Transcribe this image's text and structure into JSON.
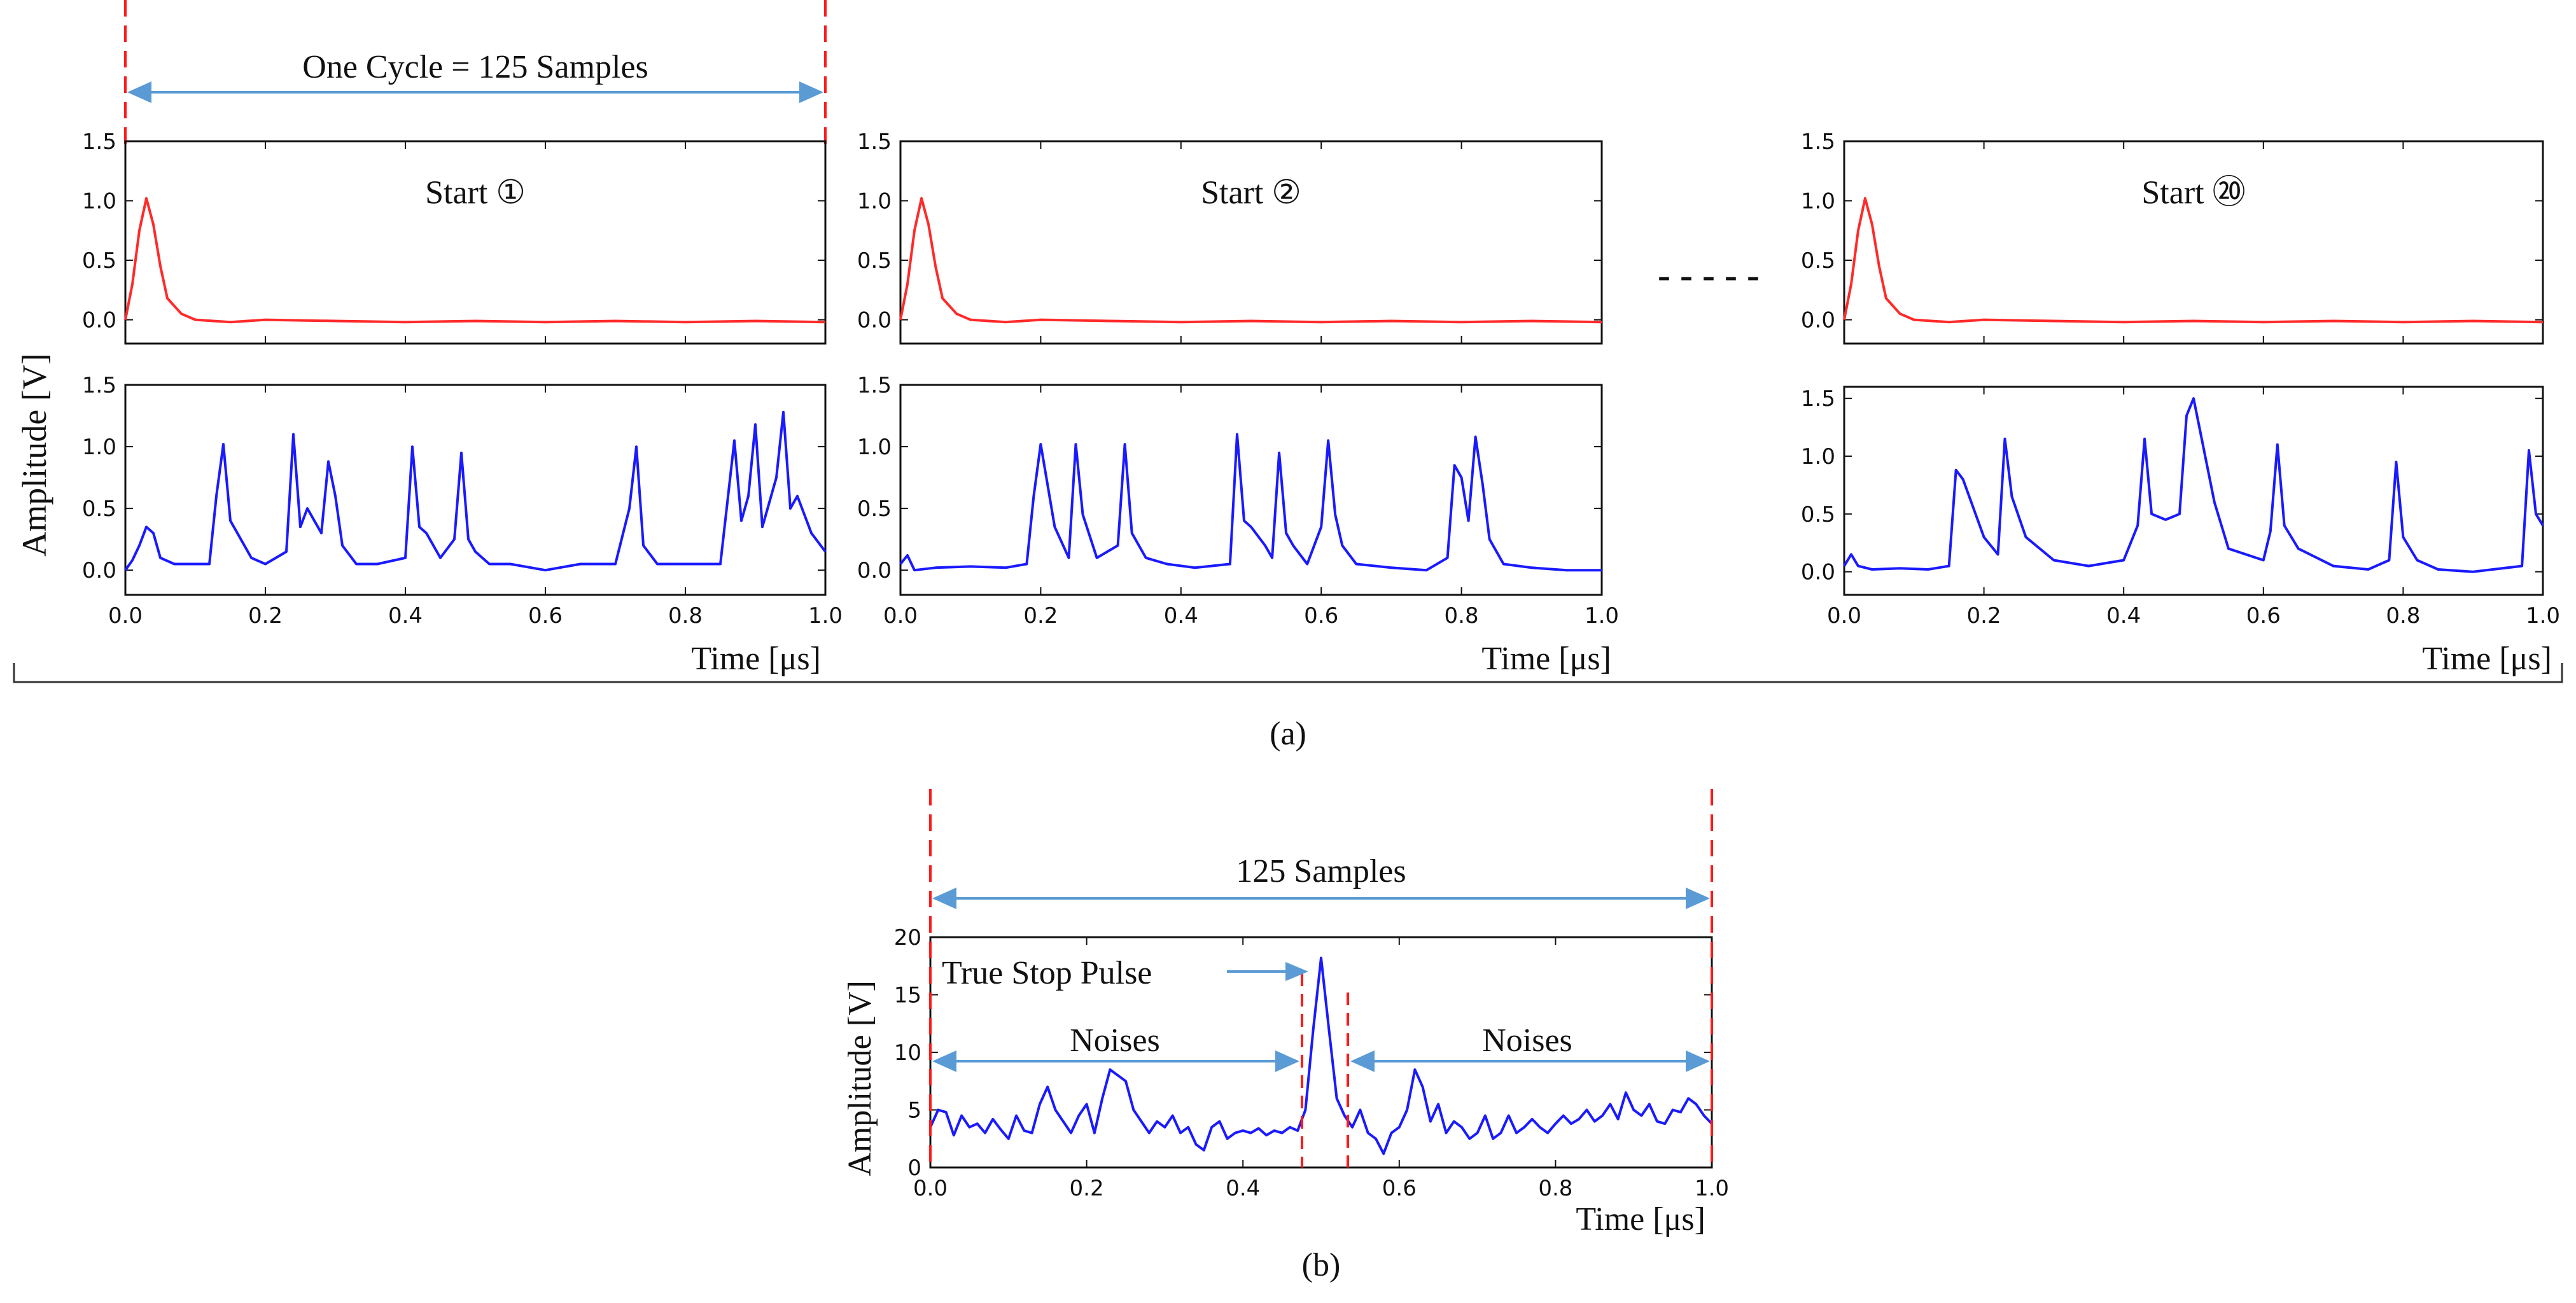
{
  "colors": {
    "start": "#ff2a2a",
    "stop": "#1a1aff",
    "arrow": "#5a9bd5",
    "guide": "#ff1a1a",
    "axis": "#111111"
  },
  "figure": {
    "panel_a_caption": "(a)",
    "panel_b_caption": "(b)",
    "cycle_label": "One Cycle = 125 Samples",
    "ellipsis": "- - - - -",
    "ylabel_a": "Amplitude [V]",
    "samples_label_b": "125 Samples",
    "true_stop_label": "True Stop Pulse",
    "noise_left_label": "Noises",
    "noise_right_label": "Noises",
    "ylabel_b": "Amplitude [V]",
    "xlabel_b": "Time [μs]"
  },
  "chart_data": [
    {
      "id": "a1",
      "type": "line",
      "xlabel": "Time [μs]",
      "xlim": [
        0,
        1
      ],
      "xticks": [
        "0.0",
        "0.2",
        "0.4",
        "0.6",
        "0.8",
        "1.0"
      ],
      "panels": [
        {
          "id": "start",
          "annotation": "Start ①",
          "ylim": [
            -0.2,
            1.5
          ],
          "yticks": [
            "0.0",
            "0.5",
            "1.0",
            "1.5"
          ],
          "series": [
            {
              "x": [
                0,
                0.01,
                0.02,
                0.03,
                0.04,
                0.05,
                0.06,
                0.08,
                0.1,
                0.15,
                0.2,
                0.3,
                0.4,
                0.5,
                0.6,
                0.7,
                0.8,
                0.9,
                1.0
              ],
              "y": [
                0.0,
                0.3,
                0.75,
                1.02,
                0.8,
                0.45,
                0.18,
                0.05,
                0.0,
                -0.02,
                0.0,
                -0.01,
                -0.02,
                -0.01,
                -0.02,
                -0.01,
                -0.02,
                -0.01,
                -0.02
              ]
            }
          ]
        },
        {
          "id": "stop",
          "ylim": [
            -0.2,
            1.5
          ],
          "yticks": [
            "0.0",
            "0.5",
            "1.0",
            "1.5"
          ],
          "series": [
            {
              "x": [
                0,
                0.01,
                0.02,
                0.03,
                0.04,
                0.05,
                0.07,
                0.1,
                0.12,
                0.13,
                0.14,
                0.15,
                0.16,
                0.18,
                0.2,
                0.23,
                0.24,
                0.25,
                0.26,
                0.28,
                0.29,
                0.3,
                0.31,
                0.33,
                0.36,
                0.4,
                0.41,
                0.42,
                0.43,
                0.45,
                0.47,
                0.48,
                0.49,
                0.5,
                0.52,
                0.55,
                0.6,
                0.65,
                0.7,
                0.72,
                0.73,
                0.74,
                0.76,
                0.8,
                0.85,
                0.87,
                0.88,
                0.89,
                0.9,
                0.91,
                0.92,
                0.93,
                0.94,
                0.95,
                0.96,
                0.97,
                0.98,
                1.0
              ],
              "y": [
                0.0,
                0.08,
                0.2,
                0.35,
                0.3,
                0.1,
                0.05,
                0.05,
                0.05,
                0.6,
                1.02,
                0.4,
                0.3,
                0.1,
                0.05,
                0.15,
                1.1,
                0.35,
                0.5,
                0.3,
                0.88,
                0.6,
                0.2,
                0.05,
                0.05,
                0.1,
                1.0,
                0.35,
                0.3,
                0.1,
                0.25,
                0.95,
                0.25,
                0.15,
                0.05,
                0.05,
                0.0,
                0.05,
                0.05,
                0.5,
                1.0,
                0.2,
                0.05,
                0.05,
                0.05,
                1.05,
                0.4,
                0.6,
                1.18,
                0.35,
                0.55,
                0.75,
                1.28,
                0.5,
                0.6,
                0.45,
                0.3,
                0.15
              ]
            }
          ]
        }
      ]
    },
    {
      "id": "a2",
      "type": "line",
      "xlabel": "Time [μs]",
      "xlim": [
        0,
        1
      ],
      "xticks": [
        "0.0",
        "0.2",
        "0.4",
        "0.6",
        "0.8",
        "1.0"
      ],
      "panels": [
        {
          "id": "start",
          "annotation": "Start ②",
          "ylim": [
            -0.2,
            1.5
          ],
          "yticks": [
            "0.0",
            "0.5",
            "1.0",
            "1.5"
          ],
          "series": [
            {
              "x": [
                0,
                0.01,
                0.02,
                0.03,
                0.04,
                0.05,
                0.06,
                0.08,
                0.1,
                0.15,
                0.2,
                0.3,
                0.4,
                0.5,
                0.6,
                0.7,
                0.8,
                0.9,
                1.0
              ],
              "y": [
                0.0,
                0.3,
                0.75,
                1.02,
                0.8,
                0.45,
                0.18,
                0.05,
                0.0,
                -0.02,
                0.0,
                -0.01,
                -0.02,
                -0.01,
                -0.02,
                -0.01,
                -0.02,
                -0.01,
                -0.02
              ]
            }
          ]
        },
        {
          "id": "stop",
          "ylim": [
            -0.2,
            1.5
          ],
          "yticks": [
            "0.0",
            "0.5",
            "1.0",
            "1.5"
          ],
          "series": [
            {
              "x": [
                0,
                0.01,
                0.02,
                0.05,
                0.1,
                0.15,
                0.18,
                0.19,
                0.2,
                0.22,
                0.24,
                0.25,
                0.26,
                0.28,
                0.31,
                0.32,
                0.33,
                0.35,
                0.38,
                0.42,
                0.47,
                0.48,
                0.49,
                0.5,
                0.52,
                0.53,
                0.54,
                0.55,
                0.56,
                0.58,
                0.6,
                0.61,
                0.62,
                0.63,
                0.65,
                0.7,
                0.75,
                0.78,
                0.79,
                0.8,
                0.81,
                0.82,
                0.83,
                0.84,
                0.86,
                0.9,
                0.95,
                1.0
              ],
              "y": [
                0.05,
                0.12,
                0.0,
                0.02,
                0.03,
                0.02,
                0.05,
                0.6,
                1.02,
                0.35,
                0.1,
                1.02,
                0.45,
                0.1,
                0.2,
                1.02,
                0.3,
                0.1,
                0.05,
                0.02,
                0.05,
                1.1,
                0.4,
                0.35,
                0.2,
                0.1,
                0.95,
                0.3,
                0.2,
                0.05,
                0.35,
                1.05,
                0.45,
                0.2,
                0.05,
                0.02,
                0.0,
                0.1,
                0.85,
                0.75,
                0.4,
                1.08,
                0.7,
                0.25,
                0.05,
                0.02,
                0.0,
                0.0
              ]
            }
          ]
        }
      ]
    },
    {
      "id": "a3",
      "type": "line",
      "xlabel": "Time [μs]",
      "xlim": [
        0,
        1
      ],
      "xticks": [
        "0.0",
        "0.2",
        "0.4",
        "0.6",
        "0.8",
        "1.0"
      ],
      "panels": [
        {
          "id": "start",
          "annotation": "Start ⑳",
          "ylim": [
            -0.2,
            1.5
          ],
          "yticks": [
            "0.0",
            "0.5",
            "1.0",
            "1.5"
          ],
          "series": [
            {
              "x": [
                0,
                0.01,
                0.02,
                0.03,
                0.04,
                0.05,
                0.06,
                0.08,
                0.1,
                0.15,
                0.2,
                0.3,
                0.4,
                0.5,
                0.6,
                0.7,
                0.8,
                0.9,
                1.0
              ],
              "y": [
                0.0,
                0.3,
                0.75,
                1.02,
                0.8,
                0.45,
                0.18,
                0.05,
                0.0,
                -0.02,
                0.0,
                -0.01,
                -0.02,
                -0.01,
                -0.02,
                -0.01,
                -0.02,
                -0.01,
                -0.02
              ]
            }
          ]
        },
        {
          "id": "stop",
          "ylim": [
            -0.2,
            1.6
          ],
          "yticks": [
            "0.0",
            "0.5",
            "1.0",
            "1.5"
          ],
          "series": [
            {
              "x": [
                0,
                0.01,
                0.02,
                0.04,
                0.08,
                0.12,
                0.15,
                0.16,
                0.17,
                0.2,
                0.22,
                0.23,
                0.24,
                0.26,
                0.3,
                0.35,
                0.4,
                0.42,
                0.43,
                0.44,
                0.46,
                0.48,
                0.49,
                0.5,
                0.51,
                0.53,
                0.55,
                0.6,
                0.61,
                0.62,
                0.63,
                0.65,
                0.7,
                0.75,
                0.78,
                0.79,
                0.8,
                0.82,
                0.85,
                0.9,
                0.97,
                0.98,
                0.99,
                1.0
              ],
              "y": [
                0.05,
                0.15,
                0.05,
                0.02,
                0.03,
                0.02,
                0.05,
                0.88,
                0.8,
                0.3,
                0.15,
                1.15,
                0.65,
                0.3,
                0.1,
                0.05,
                0.1,
                0.4,
                1.15,
                0.5,
                0.45,
                0.5,
                1.35,
                1.5,
                1.2,
                0.6,
                0.2,
                0.1,
                0.35,
                1.1,
                0.4,
                0.2,
                0.05,
                0.02,
                0.1,
                0.95,
                0.3,
                0.1,
                0.02,
                0.0,
                0.05,
                1.05,
                0.5,
                0.4
              ]
            }
          ]
        }
      ]
    },
    {
      "id": "b",
      "type": "line",
      "xlabel": "Time [μs]",
      "ylabel": "Amplitude [V]",
      "xlim": [
        0,
        1
      ],
      "ylim": [
        0,
        20
      ],
      "xticks": [
        "0.0",
        "0.2",
        "0.4",
        "0.6",
        "0.8",
        "1.0"
      ],
      "yticks": [
        "0",
        "5",
        "10",
        "15",
        "20"
      ],
      "series": [
        {
          "x": [
            0,
            0.01,
            0.02,
            0.03,
            0.04,
            0.05,
            0.06,
            0.07,
            0.08,
            0.09,
            0.1,
            0.11,
            0.12,
            0.13,
            0.14,
            0.15,
            0.16,
            0.17,
            0.18,
            0.19,
            0.2,
            0.21,
            0.22,
            0.23,
            0.24,
            0.25,
            0.26,
            0.27,
            0.28,
            0.29,
            0.3,
            0.31,
            0.32,
            0.33,
            0.34,
            0.35,
            0.36,
            0.37,
            0.38,
            0.39,
            0.4,
            0.41,
            0.42,
            0.43,
            0.44,
            0.45,
            0.46,
            0.47,
            0.48,
            0.49,
            0.5,
            0.51,
            0.52,
            0.53,
            0.54,
            0.55,
            0.56,
            0.57,
            0.58,
            0.59,
            0.6,
            0.61,
            0.62,
            0.63,
            0.64,
            0.65,
            0.66,
            0.67,
            0.68,
            0.69,
            0.7,
            0.71,
            0.72,
            0.73,
            0.74,
            0.75,
            0.76,
            0.77,
            0.78,
            0.79,
            0.8,
            0.81,
            0.82,
            0.83,
            0.84,
            0.85,
            0.86,
            0.87,
            0.88,
            0.89,
            0.9,
            0.91,
            0.92,
            0.93,
            0.94,
            0.95,
            0.96,
            0.97,
            0.98,
            0.99,
            1.0
          ],
          "y": [
            3.5,
            5.0,
            4.8,
            2.8,
            4.5,
            3.5,
            3.8,
            3.0,
            4.2,
            3.3,
            2.5,
            4.5,
            3.2,
            3.0,
            5.5,
            7.0,
            5.0,
            4.0,
            3.0,
            4.5,
            5.5,
            3.0,
            6.0,
            8.5,
            8.0,
            7.5,
            5.0,
            4.0,
            3.0,
            4.0,
            3.5,
            4.5,
            3.0,
            3.5,
            2.0,
            1.5,
            3.5,
            4.0,
            2.5,
            3.0,
            3.2,
            3.0,
            3.4,
            2.8,
            3.2,
            3.0,
            3.5,
            3.2,
            5.0,
            12.0,
            18.2,
            12.0,
            6.0,
            4.5,
            3.5,
            5.0,
            3.0,
            2.5,
            1.2,
            3.0,
            3.5,
            5.0,
            8.5,
            7.0,
            4.0,
            5.5,
            3.0,
            4.0,
            3.5,
            2.5,
            3.0,
            4.5,
            2.5,
            3.0,
            4.5,
            3.0,
            3.5,
            4.2,
            3.5,
            3.0,
            3.8,
            4.5,
            3.8,
            4.2,
            5.0,
            4.0,
            4.5,
            5.5,
            4.2,
            6.5,
            5.0,
            4.5,
            5.5,
            4.0,
            3.8,
            5.0,
            4.8,
            6.0,
            5.5,
            4.5,
            3.8
          ]
        }
      ]
    }
  ]
}
